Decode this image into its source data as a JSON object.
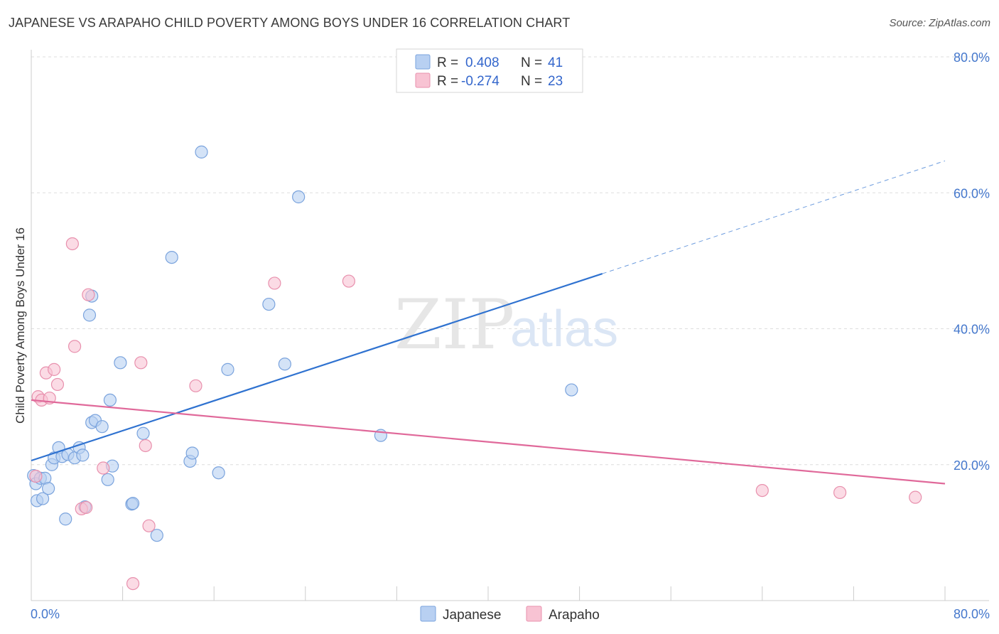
{
  "header": {
    "title": "JAPANESE VS ARAPAHO CHILD POVERTY AMONG BOYS UNDER 16 CORRELATION CHART",
    "source": "Source: ZipAtlas.com"
  },
  "colors": {
    "japanese_fill": "#b8d0f2",
    "japanese_stroke": "#7aa3dd",
    "japanese_line": "#2f72d0",
    "arapaho_fill": "#f8c3d3",
    "arapaho_stroke": "#e890ad",
    "arapaho_line": "#e0699a",
    "tick_text": "#4477cc",
    "grid": "#dddddd"
  },
  "watermark": {
    "zip": "ZIP",
    "atlas": "atlas"
  },
  "chart_data": {
    "type": "scatter",
    "title": "JAPANESE VS ARAPAHO CHILD POVERTY AMONG BOYS UNDER 16 CORRELATION CHART",
    "xlabel": "",
    "ylabel": "Child Poverty Among Boys Under 16",
    "xlim": [
      0,
      80
    ],
    "ylim": [
      0,
      80
    ],
    "x_tick_labels": [
      "0.0%",
      "80.0%"
    ],
    "y_tick_labels": [
      "20.0%",
      "40.0%",
      "60.0%",
      "80.0%"
    ],
    "y_tick_values": [
      20,
      40,
      60,
      80
    ],
    "x_minor_ticks": [
      0,
      8,
      16,
      24,
      32,
      40,
      48,
      56,
      64,
      72,
      80
    ],
    "legend": [
      {
        "r_label": "R =",
        "r_value": "0.408",
        "n_label": "N =",
        "n_value": "41"
      },
      {
        "r_label": "R =",
        "r_value": "-0.274",
        "n_label": "N =",
        "n_value": "23"
      }
    ],
    "series": [
      {
        "name": "Japanese",
        "points": [
          [
            0.2,
            18.4
          ],
          [
            0.4,
            17.2
          ],
          [
            0.5,
            14.7
          ],
          [
            0.8,
            18.0
          ],
          [
            1.0,
            15.0
          ],
          [
            1.2,
            18.0
          ],
          [
            1.5,
            16.5
          ],
          [
            1.8,
            20.0
          ],
          [
            2.0,
            21.0
          ],
          [
            2.4,
            22.5
          ],
          [
            2.7,
            21.2
          ],
          [
            3.0,
            12.0
          ],
          [
            3.2,
            21.5
          ],
          [
            3.8,
            21.0
          ],
          [
            4.2,
            22.5
          ],
          [
            4.5,
            21.4
          ],
          [
            4.7,
            13.8
          ],
          [
            5.1,
            42.0
          ],
          [
            5.3,
            44.8
          ],
          [
            5.3,
            26.2
          ],
          [
            5.6,
            26.5
          ],
          [
            6.2,
            25.6
          ],
          [
            6.7,
            17.8
          ],
          [
            6.9,
            29.5
          ],
          [
            7.1,
            19.8
          ],
          [
            7.8,
            35.0
          ],
          [
            8.8,
            14.2
          ],
          [
            8.9,
            14.3
          ],
          [
            9.8,
            24.6
          ],
          [
            11.0,
            9.6
          ],
          [
            12.3,
            50.5
          ],
          [
            13.9,
            20.5
          ],
          [
            14.1,
            21.7
          ],
          [
            14.9,
            66.0
          ],
          [
            16.4,
            18.8
          ],
          [
            17.2,
            34.0
          ],
          [
            20.8,
            43.6
          ],
          [
            22.2,
            34.8
          ],
          [
            23.4,
            59.4
          ],
          [
            30.6,
            24.3
          ],
          [
            47.3,
            31.0
          ]
        ],
        "trend": {
          "x_start": 0,
          "y_start": 20.6,
          "x_solid_end": 50,
          "y_solid_end": 48.1,
          "x_end": 80,
          "y_end": 64.7
        }
      },
      {
        "name": "Arapaho",
        "points": [
          [
            0.4,
            18.3
          ],
          [
            0.6,
            30.0
          ],
          [
            0.9,
            29.5
          ],
          [
            1.3,
            33.5
          ],
          [
            1.6,
            29.8
          ],
          [
            2.0,
            34.0
          ],
          [
            2.3,
            31.8
          ],
          [
            3.6,
            52.5
          ],
          [
            3.8,
            37.4
          ],
          [
            4.4,
            13.5
          ],
          [
            4.8,
            13.7
          ],
          [
            5.0,
            45.0
          ],
          [
            6.3,
            19.5
          ],
          [
            8.9,
            2.5
          ],
          [
            9.6,
            35.0
          ],
          [
            10.0,
            22.8
          ],
          [
            10.3,
            11.0
          ],
          [
            14.4,
            31.6
          ],
          [
            21.3,
            46.7
          ],
          [
            27.8,
            47.0
          ],
          [
            64.0,
            16.2
          ],
          [
            70.8,
            15.9
          ],
          [
            77.4,
            15.2
          ]
        ],
        "trend": {
          "x_start": 0,
          "y_start": 29.5,
          "x_end": 80,
          "y_end": 17.2
        }
      }
    ]
  }
}
